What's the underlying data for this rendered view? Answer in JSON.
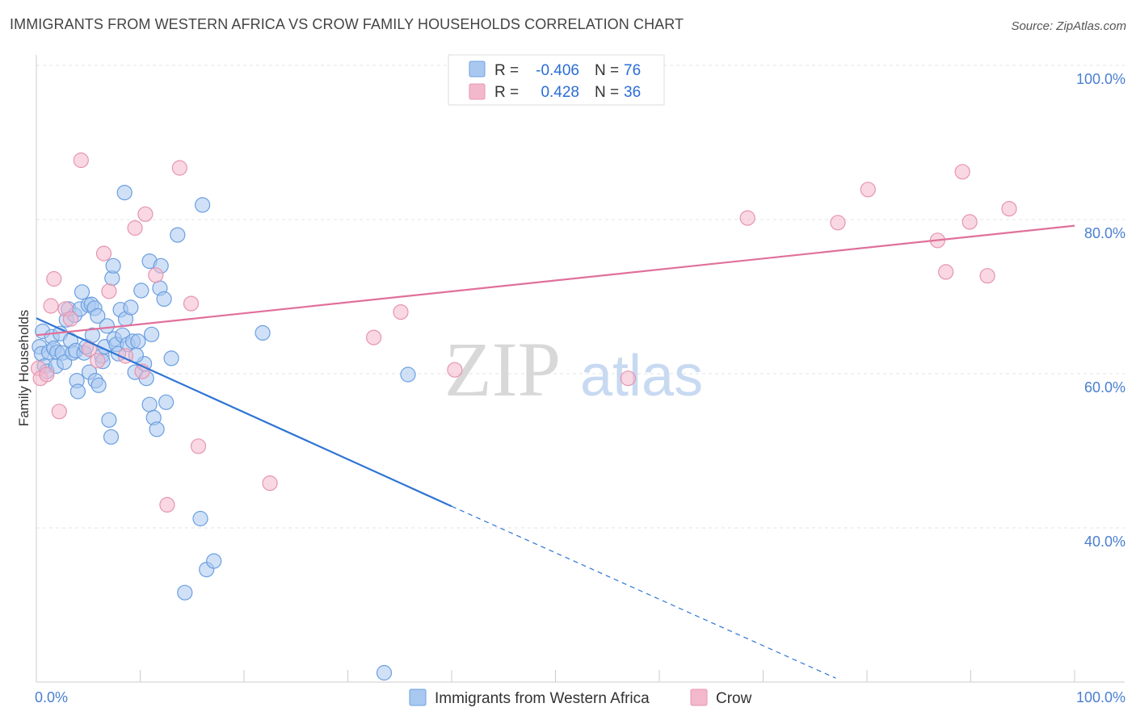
{
  "header": {
    "title": "IMMIGRANTS FROM WESTERN AFRICA VS CROW FAMILY HOUSEHOLDS CORRELATION CHART",
    "source": "Source: ZipAtlas.com"
  },
  "watermark": {
    "zip": "ZIP",
    "atlas": "atlas"
  },
  "colors": {
    "blue": "#2f74d4",
    "blue_fill": "#a9c8f0",
    "pink": "#e0709a",
    "pink_fill": "#f4b8cc",
    "tick": "#4a7fd0"
  },
  "legend_top": {
    "rows": [
      {
        "r_label": "R =",
        "r_value": "-0.406",
        "n_label": "N =",
        "n_value": "76"
      },
      {
        "r_label": "R =",
        "r_value": "0.428",
        "n_label": "N =",
        "n_value": "36"
      }
    ]
  },
  "legend_bottom": {
    "items": [
      "Immigrants from Western Africa",
      "Crow"
    ]
  },
  "chart_data": {
    "type": "scatter",
    "title": "IMMIGRANTS FROM WESTERN AFRICA VS CROW FAMILY HOUSEHOLDS CORRELATION CHART",
    "xlabel": "",
    "ylabel": "Family Households",
    "xlim": [
      0,
      100
    ],
    "ylim": [
      20,
      104
    ],
    "x_tick_labels": [
      "0.0%",
      "100.0%"
    ],
    "y_ticks": [
      40,
      60,
      80,
      100
    ],
    "y_tick_labels": [
      "40.0%",
      "60.0%",
      "80.0%",
      "100.0%"
    ],
    "series": [
      {
        "name": "Immigrants from Western Africa",
        "color": "blue",
        "R": -0.406,
        "N": 76,
        "trend": {
          "x0": 0,
          "y0": 67.2,
          "x1": 40.0,
          "y1": 42.8,
          "dash_x1": 77.0,
          "dash_y1": 20.5
        },
        "points": [
          [
            0.3,
            63.5
          ],
          [
            0.5,
            62.6
          ],
          [
            0.6,
            65.5
          ],
          [
            0.8,
            61.0
          ],
          [
            1.0,
            60.3
          ],
          [
            1.2,
            62.8
          ],
          [
            1.5,
            64.8
          ],
          [
            1.7,
            63.3
          ],
          [
            1.9,
            61.0
          ],
          [
            2.0,
            62.8
          ],
          [
            2.3,
            65.2
          ],
          [
            2.5,
            62.7
          ],
          [
            2.7,
            61.5
          ],
          [
            2.9,
            67.0
          ],
          [
            3.1,
            68.4
          ],
          [
            3.3,
            64.3
          ],
          [
            3.5,
            62.7
          ],
          [
            3.7,
            67.6
          ],
          [
            3.8,
            63.0
          ],
          [
            3.9,
            59.1
          ],
          [
            4.0,
            57.7
          ],
          [
            4.2,
            68.4
          ],
          [
            4.4,
            70.6
          ],
          [
            4.6,
            62.7
          ],
          [
            4.8,
            63.5
          ],
          [
            5.0,
            68.9
          ],
          [
            5.1,
            60.2
          ],
          [
            5.3,
            69.0
          ],
          [
            5.4,
            65.0
          ],
          [
            5.6,
            68.5
          ],
          [
            5.7,
            59.1
          ],
          [
            5.9,
            67.5
          ],
          [
            6.3,
            62.3
          ],
          [
            6.4,
            61.6
          ],
          [
            6.6,
            63.5
          ],
          [
            6.8,
            66.2
          ],
          [
            7.0,
            54.0
          ],
          [
            7.2,
            51.8
          ],
          [
            7.3,
            72.4
          ],
          [
            7.5,
            64.5
          ],
          [
            7.7,
            63.8
          ],
          [
            7.9,
            62.6
          ],
          [
            8.1,
            68.3
          ],
          [
            8.3,
            65.0
          ],
          [
            8.6,
            67.1
          ],
          [
            8.8,
            63.8
          ],
          [
            9.1,
            68.6
          ],
          [
            9.3,
            64.2
          ],
          [
            9.5,
            60.2
          ],
          [
            9.8,
            64.2
          ],
          [
            10.1,
            70.8
          ],
          [
            10.4,
            61.3
          ],
          [
            10.6,
            59.4
          ],
          [
            10.9,
            56.0
          ],
          [
            11.1,
            65.1
          ],
          [
            11.3,
            54.3
          ],
          [
            11.6,
            52.8
          ],
          [
            11.9,
            71.1
          ],
          [
            12.3,
            69.7
          ],
          [
            12.5,
            56.3
          ],
          [
            13.0,
            62.0
          ],
          [
            13.6,
            78.0
          ],
          [
            14.3,
            31.6
          ],
          [
            15.8,
            41.2
          ],
          [
            16.4,
            34.6
          ],
          [
            17.1,
            35.7
          ],
          [
            21.8,
            65.3
          ],
          [
            33.5,
            21.2
          ],
          [
            35.8,
            59.9
          ],
          [
            8.5,
            83.5
          ],
          [
            16.0,
            81.9
          ],
          [
            7.4,
            74.0
          ],
          [
            10.9,
            74.6
          ],
          [
            12.0,
            74.0
          ],
          [
            6.0,
            58.5
          ],
          [
            9.6,
            62.4
          ]
        ]
      },
      {
        "name": "Crow",
        "color": "pink",
        "R": 0.428,
        "N": 36,
        "trend": {
          "x0": 0,
          "y0": 65.0,
          "x1": 100,
          "y1": 79.2
        },
        "points": [
          [
            0.2,
            60.7
          ],
          [
            0.4,
            59.4
          ],
          [
            1.0,
            59.9
          ],
          [
            1.4,
            68.8
          ],
          [
            1.7,
            72.3
          ],
          [
            2.2,
            55.1
          ],
          [
            2.8,
            68.4
          ],
          [
            3.3,
            67.1
          ],
          [
            4.3,
            87.7
          ],
          [
            5.1,
            63.2
          ],
          [
            5.9,
            61.7
          ],
          [
            6.5,
            75.6
          ],
          [
            7.0,
            70.7
          ],
          [
            8.6,
            62.3
          ],
          [
            9.5,
            78.9
          ],
          [
            10.2,
            60.3
          ],
          [
            10.5,
            80.7
          ],
          [
            11.5,
            72.8
          ],
          [
            12.6,
            43.0
          ],
          [
            13.8,
            86.7
          ],
          [
            14.9,
            69.1
          ],
          [
            15.6,
            50.6
          ],
          [
            22.5,
            45.8
          ],
          [
            32.5,
            64.7
          ],
          [
            35.1,
            68.0
          ],
          [
            40.3,
            60.5
          ],
          [
            57.0,
            59.4
          ],
          [
            68.5,
            80.2
          ],
          [
            77.2,
            79.6
          ],
          [
            80.1,
            83.9
          ],
          [
            86.8,
            77.3
          ],
          [
            87.6,
            73.2
          ],
          [
            89.2,
            86.2
          ],
          [
            89.9,
            79.7
          ],
          [
            91.6,
            72.7
          ],
          [
            93.7,
            81.4
          ]
        ]
      }
    ]
  }
}
